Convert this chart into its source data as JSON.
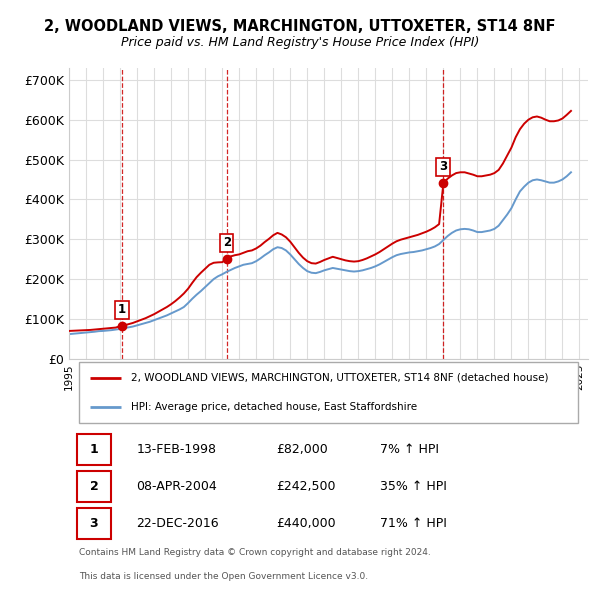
{
  "title": "2, WOODLAND VIEWS, MARCHINGTON, UTTOXETER, ST14 8NF",
  "subtitle": "Price paid vs. HM Land Registry's House Price Index (HPI)",
  "property_label": "2, WOODLAND VIEWS, MARCHINGTON, UTTOXETER, ST14 8NF (detached house)",
  "hpi_label": "HPI: Average price, detached house, East Staffordshire",
  "sales": [
    {
      "num": 1,
      "date": "13-FEB-1998",
      "price": 82000,
      "pct": "7%",
      "dir": "↑",
      "year_x": 1998.12
    },
    {
      "num": 2,
      "date": "08-APR-2004",
      "price": 242500,
      "pct": "35%",
      "dir": "↑",
      "year_x": 2004.27
    },
    {
      "num": 3,
      "date": "22-DEC-2016",
      "price": 440000,
      "pct": "71%",
      "dir": "↑",
      "year_x": 2016.97
    }
  ],
  "property_color": "#cc0000",
  "hpi_color": "#6699cc",
  "dashed_color": "#cc0000",
  "ylim": [
    0,
    730000
  ],
  "yticks": [
    0,
    100000,
    200000,
    300000,
    400000,
    500000,
    600000,
    700000
  ],
  "ytick_labels": [
    "£0",
    "£100K",
    "£200K",
    "£300K",
    "£400K",
    "£500K",
    "£600K",
    "£700K"
  ],
  "xlim_start": 1995.0,
  "xlim_end": 2025.5,
  "footer1": "Contains HM Land Registry data © Crown copyright and database right 2024.",
  "footer2": "This data is licensed under the Open Government Licence v3.0.",
  "bg_color": "#ffffff",
  "grid_color": "#dddddd",
  "hpi_data": [
    [
      1995.0,
      62000
    ],
    [
      1995.25,
      63000
    ],
    [
      1995.5,
      64000
    ],
    [
      1995.75,
      65000
    ],
    [
      1996.0,
      66000
    ],
    [
      1996.25,
      67000
    ],
    [
      1996.5,
      68000
    ],
    [
      1996.75,
      69500
    ],
    [
      1997.0,
      70000
    ],
    [
      1997.25,
      71000
    ],
    [
      1997.5,
      72000
    ],
    [
      1997.75,
      73500
    ],
    [
      1998.0,
      75000
    ],
    [
      1998.25,
      77000
    ],
    [
      1998.5,
      79000
    ],
    [
      1998.75,
      81000
    ],
    [
      1999.0,
      84000
    ],
    [
      1999.25,
      87000
    ],
    [
      1999.5,
      90000
    ],
    [
      1999.75,
      93000
    ],
    [
      2000.0,
      97000
    ],
    [
      2000.25,
      101000
    ],
    [
      2000.5,
      105000
    ],
    [
      2000.75,
      109000
    ],
    [
      2001.0,
      114000
    ],
    [
      2001.25,
      119000
    ],
    [
      2001.5,
      124000
    ],
    [
      2001.75,
      130000
    ],
    [
      2002.0,
      140000
    ],
    [
      2002.25,
      151000
    ],
    [
      2002.5,
      161000
    ],
    [
      2002.75,
      170000
    ],
    [
      2003.0,
      180000
    ],
    [
      2003.25,
      190000
    ],
    [
      2003.5,
      200000
    ],
    [
      2003.75,
      207000
    ],
    [
      2004.0,
      212000
    ],
    [
      2004.25,
      218000
    ],
    [
      2004.5,
      223000
    ],
    [
      2004.75,
      228000
    ],
    [
      2005.0,
      232000
    ],
    [
      2005.25,
      236000
    ],
    [
      2005.5,
      238000
    ],
    [
      2005.75,
      240000
    ],
    [
      2006.0,
      245000
    ],
    [
      2006.25,
      252000
    ],
    [
      2006.5,
      260000
    ],
    [
      2006.75,
      267000
    ],
    [
      2007.0,
      275000
    ],
    [
      2007.25,
      280000
    ],
    [
      2007.5,
      278000
    ],
    [
      2007.75,
      272000
    ],
    [
      2008.0,
      262000
    ],
    [
      2008.25,
      250000
    ],
    [
      2008.5,
      238000
    ],
    [
      2008.75,
      228000
    ],
    [
      2009.0,
      220000
    ],
    [
      2009.25,
      216000
    ],
    [
      2009.5,
      215000
    ],
    [
      2009.75,
      218000
    ],
    [
      2010.0,
      222000
    ],
    [
      2010.25,
      225000
    ],
    [
      2010.5,
      228000
    ],
    [
      2010.75,
      226000
    ],
    [
      2011.0,
      224000
    ],
    [
      2011.25,
      222000
    ],
    [
      2011.5,
      220000
    ],
    [
      2011.75,
      219000
    ],
    [
      2012.0,
      220000
    ],
    [
      2012.25,
      222000
    ],
    [
      2012.5,
      225000
    ],
    [
      2012.75,
      228000
    ],
    [
      2013.0,
      232000
    ],
    [
      2013.25,
      237000
    ],
    [
      2013.5,
      243000
    ],
    [
      2013.75,
      249000
    ],
    [
      2014.0,
      255000
    ],
    [
      2014.25,
      260000
    ],
    [
      2014.5,
      263000
    ],
    [
      2014.75,
      265000
    ],
    [
      2015.0,
      267000
    ],
    [
      2015.25,
      268000
    ],
    [
      2015.5,
      270000
    ],
    [
      2015.75,
      272000
    ],
    [
      2016.0,
      275000
    ],
    [
      2016.25,
      278000
    ],
    [
      2016.5,
      282000
    ],
    [
      2016.75,
      288000
    ],
    [
      2017.0,
      298000
    ],
    [
      2017.25,
      308000
    ],
    [
      2017.5,
      316000
    ],
    [
      2017.75,
      322000
    ],
    [
      2018.0,
      325000
    ],
    [
      2018.25,
      326000
    ],
    [
      2018.5,
      325000
    ],
    [
      2018.75,
      322000
    ],
    [
      2019.0,
      318000
    ],
    [
      2019.25,
      318000
    ],
    [
      2019.5,
      320000
    ],
    [
      2019.75,
      322000
    ],
    [
      2020.0,
      326000
    ],
    [
      2020.25,
      334000
    ],
    [
      2020.5,
      348000
    ],
    [
      2020.75,
      362000
    ],
    [
      2021.0,
      378000
    ],
    [
      2021.25,
      400000
    ],
    [
      2021.5,
      420000
    ],
    [
      2021.75,
      432000
    ],
    [
      2022.0,
      442000
    ],
    [
      2022.25,
      448000
    ],
    [
      2022.5,
      450000
    ],
    [
      2022.75,
      448000
    ],
    [
      2023.0,
      445000
    ],
    [
      2023.25,
      442000
    ],
    [
      2023.5,
      442000
    ],
    [
      2023.75,
      445000
    ],
    [
      2024.0,
      450000
    ],
    [
      2024.25,
      458000
    ],
    [
      2024.5,
      468000
    ]
  ],
  "prop_data": [
    [
      1995.0,
      70000
    ],
    [
      1995.25,
      70500
    ],
    [
      1995.5,
      71000
    ],
    [
      1995.75,
      71500
    ],
    [
      1996.0,
      72000
    ],
    [
      1996.25,
      72500
    ],
    [
      1996.5,
      73500
    ],
    [
      1996.75,
      74500
    ],
    [
      1997.0,
      75500
    ],
    [
      1997.25,
      76500
    ],
    [
      1997.5,
      77500
    ],
    [
      1997.75,
      78500
    ],
    [
      1998.0,
      82000
    ],
    [
      1998.25,
      84000
    ],
    [
      1998.5,
      87000
    ],
    [
      1998.75,
      90000
    ],
    [
      1999.0,
      94000
    ],
    [
      1999.25,
      98000
    ],
    [
      1999.5,
      102000
    ],
    [
      1999.75,
      107000
    ],
    [
      2000.0,
      112000
    ],
    [
      2000.25,
      118000
    ],
    [
      2000.5,
      124000
    ],
    [
      2000.75,
      130000
    ],
    [
      2001.0,
      137000
    ],
    [
      2001.25,
      145000
    ],
    [
      2001.5,
      154000
    ],
    [
      2001.75,
      164000
    ],
    [
      2002.0,
      176000
    ],
    [
      2002.25,
      191000
    ],
    [
      2002.5,
      205000
    ],
    [
      2002.75,
      216000
    ],
    [
      2003.0,
      226000
    ],
    [
      2003.25,
      236000
    ],
    [
      2003.5,
      241000
    ],
    [
      2003.75,
      242000
    ],
    [
      2004.0,
      242500
    ],
    [
      2004.25,
      250000
    ],
    [
      2004.5,
      257000
    ],
    [
      2004.75,
      260000
    ],
    [
      2005.0,
      262000
    ],
    [
      2005.25,
      266000
    ],
    [
      2005.5,
      270000
    ],
    [
      2005.75,
      272000
    ],
    [
      2006.0,
      277000
    ],
    [
      2006.25,
      284000
    ],
    [
      2006.5,
      293000
    ],
    [
      2006.75,
      301000
    ],
    [
      2007.0,
      310000
    ],
    [
      2007.25,
      316000
    ],
    [
      2007.5,
      312000
    ],
    [
      2007.75,
      305000
    ],
    [
      2008.0,
      294000
    ],
    [
      2008.25,
      280000
    ],
    [
      2008.5,
      266000
    ],
    [
      2008.75,
      254000
    ],
    [
      2009.0,
      245000
    ],
    [
      2009.25,
      240000
    ],
    [
      2009.5,
      239000
    ],
    [
      2009.75,
      243000
    ],
    [
      2010.0,
      248000
    ],
    [
      2010.25,
      252000
    ],
    [
      2010.5,
      256000
    ],
    [
      2010.75,
      253000
    ],
    [
      2011.0,
      250000
    ],
    [
      2011.25,
      247000
    ],
    [
      2011.5,
      245000
    ],
    [
      2011.75,
      244000
    ],
    [
      2012.0,
      245000
    ],
    [
      2012.25,
      248000
    ],
    [
      2012.5,
      252000
    ],
    [
      2012.75,
      257000
    ],
    [
      2013.0,
      262000
    ],
    [
      2013.25,
      268000
    ],
    [
      2013.5,
      275000
    ],
    [
      2013.75,
      282000
    ],
    [
      2014.0,
      289000
    ],
    [
      2014.25,
      295000
    ],
    [
      2014.5,
      299000
    ],
    [
      2014.75,
      302000
    ],
    [
      2015.0,
      305000
    ],
    [
      2015.25,
      308000
    ],
    [
      2015.5,
      311000
    ],
    [
      2015.75,
      315000
    ],
    [
      2016.0,
      319000
    ],
    [
      2016.25,
      324000
    ],
    [
      2016.5,
      330000
    ],
    [
      2016.75,
      338000
    ],
    [
      2017.0,
      440000
    ],
    [
      2017.25,
      452000
    ],
    [
      2017.5,
      460000
    ],
    [
      2017.75,
      466000
    ],
    [
      2018.0,
      468000
    ],
    [
      2018.25,
      468000
    ],
    [
      2018.5,
      465000
    ],
    [
      2018.75,
      462000
    ],
    [
      2019.0,
      458000
    ],
    [
      2019.25,
      458000
    ],
    [
      2019.5,
      460000
    ],
    [
      2019.75,
      462000
    ],
    [
      2020.0,
      466000
    ],
    [
      2020.25,
      474000
    ],
    [
      2020.5,
      490000
    ],
    [
      2020.75,
      510000
    ],
    [
      2021.0,
      530000
    ],
    [
      2021.25,
      556000
    ],
    [
      2021.5,
      576000
    ],
    [
      2021.75,
      590000
    ],
    [
      2022.0,
      600000
    ],
    [
      2022.25,
      606000
    ],
    [
      2022.5,
      608000
    ],
    [
      2022.75,
      605000
    ],
    [
      2023.0,
      600000
    ],
    [
      2023.25,
      596000
    ],
    [
      2023.5,
      596000
    ],
    [
      2023.75,
      598000
    ],
    [
      2024.0,
      603000
    ],
    [
      2024.25,
      612000
    ],
    [
      2024.5,
      622000
    ]
  ]
}
